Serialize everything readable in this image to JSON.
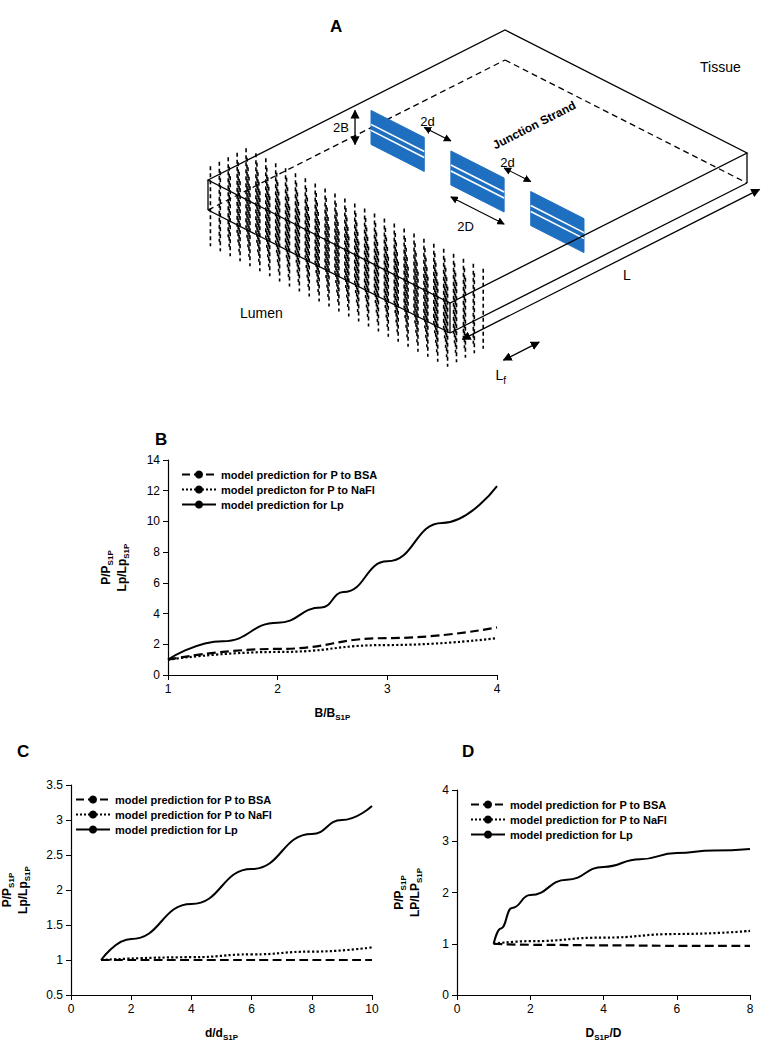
{
  "diagram": {
    "title": "A",
    "labels": {
      "tissue": "Tissue",
      "cleft_height": "2B",
      "strand": "Junction Strand",
      "breaks": [
        "2d",
        "2d"
      ],
      "strand_length": "2D",
      "cleft_length": "L",
      "lumen": "Lumen",
      "fiber_layer": [
        {
          "text": "L"
        },
        {
          "text": "f",
          "sub": true
        }
      ]
    }
  },
  "chart_data": [
    {
      "type": "line",
      "title": "B",
      "xlabel": [
        {
          "text": "B/B"
        },
        {
          "text": "S1P",
          "sub": true
        }
      ],
      "ylabel": [
        [
          {
            "text": "P/P"
          },
          {
            "text": "S1P",
            "sub": true
          }
        ],
        [
          {
            "text": "Lp/Lp"
          },
          {
            "text": "S1P",
            "sub": true
          }
        ]
      ],
      "xlim": [
        1,
        4
      ],
      "xticks": [
        1,
        2,
        3,
        4
      ],
      "ylim": [
        0,
        14
      ],
      "yticks": [
        0,
        2,
        4,
        6,
        8,
        10,
        12,
        14
      ],
      "grid": false,
      "legend": "top-left",
      "series": [
        {
          "name": "model prediction for P to BSA",
          "color": "#000000",
          "line_style": "dashed",
          "x": [
            1,
            2,
            3,
            4
          ],
          "values": [
            1,
            1.7,
            2.4,
            3.1
          ]
        },
        {
          "name": "model predicton for P to NaFl",
          "color": "#000000",
          "line_style": "dotted",
          "x": [
            1,
            2,
            3,
            4
          ],
          "values": [
            1,
            1.5,
            1.95,
            2.4
          ]
        },
        {
          "name": "model prediction for Lp",
          "color": "#000000",
          "line_style": "solid",
          "x": [
            1,
            1.5,
            2,
            2.4,
            2.6,
            3,
            3.5,
            4
          ],
          "values": [
            1,
            2.2,
            3.4,
            4.4,
            5.4,
            7.4,
            9.9,
            12.3
          ]
        }
      ]
    },
    {
      "type": "line",
      "title": "C",
      "xlabel": [
        {
          "text": "d/d"
        },
        {
          "text": "S1P",
          "sub": true
        }
      ],
      "ylabel": [
        [
          {
            "text": "P/P"
          },
          {
            "text": "S1P",
            "sub": true
          }
        ],
        [
          {
            "text": "Lp/Lp"
          },
          {
            "text": "S1P",
            "sub": true
          }
        ]
      ],
      "xlim": [
        0,
        10
      ],
      "xticks": [
        0,
        2,
        4,
        6,
        8,
        10
      ],
      "ylim": [
        0.5,
        3.5
      ],
      "yticks": [
        0.5,
        1,
        1.5,
        2,
        2.5,
        3,
        3.5
      ],
      "grid": false,
      "legend": "top-left",
      "series": [
        {
          "name": "model prediction for P to BSA",
          "color": "#000000",
          "line_style": "dashed",
          "x": [
            1,
            4,
            7,
            10
          ],
          "values": [
            1,
            1,
            1,
            1
          ]
        },
        {
          "name": "model prediction for P to NaFl",
          "color": "#000000",
          "line_style": "dotted",
          "x": [
            1,
            4,
            6,
            8,
            10
          ],
          "values": [
            1,
            1.04,
            1.08,
            1.12,
            1.18
          ]
        },
        {
          "name": "model prediction for Lp",
          "color": "#000000",
          "line_style": "solid",
          "x": [
            1,
            2,
            4,
            6,
            8,
            9,
            10
          ],
          "values": [
            1,
            1.3,
            1.8,
            2.3,
            2.8,
            3.0,
            3.2
          ]
        }
      ]
    },
    {
      "type": "line",
      "title": "D",
      "xlabel": [
        {
          "text": "D"
        },
        {
          "text": "S1P",
          "sub": true
        },
        {
          "text": "/D"
        }
      ],
      "ylabel": [
        [
          {
            "text": "P/P"
          },
          {
            "text": "S1P",
            "sub": true
          }
        ],
        [
          {
            "text": "LP/LP"
          },
          {
            "text": "S1P",
            "sub": true
          }
        ]
      ],
      "xlim": [
        0,
        8
      ],
      "xticks": [
        0,
        2,
        4,
        6,
        8
      ],
      "ylim": [
        0,
        4
      ],
      "yticks": [
        0,
        1,
        2,
        3,
        4
      ],
      "grid": false,
      "legend": "top-left",
      "series": [
        {
          "name": "model prediction for P to BSA",
          "color": "#000000",
          "line_style": "dashed",
          "x": [
            1,
            2,
            4,
            6,
            8
          ],
          "values": [
            1,
            0.98,
            0.97,
            0.96,
            0.96
          ]
        },
        {
          "name": "model prediction for P to NaFl",
          "color": "#000000",
          "line_style": "dotted",
          "x": [
            1,
            2,
            4,
            6,
            8
          ],
          "values": [
            1,
            1.05,
            1.12,
            1.19,
            1.25
          ]
        },
        {
          "name": "model prediction for Lp",
          "color": "#000000",
          "line_style": "solid",
          "x": [
            1,
            1.2,
            1.5,
            2,
            3,
            4,
            5,
            6,
            7,
            8
          ],
          "values": [
            1,
            1.3,
            1.7,
            1.95,
            2.25,
            2.5,
            2.65,
            2.77,
            2.82,
            2.85
          ]
        }
      ]
    }
  ]
}
